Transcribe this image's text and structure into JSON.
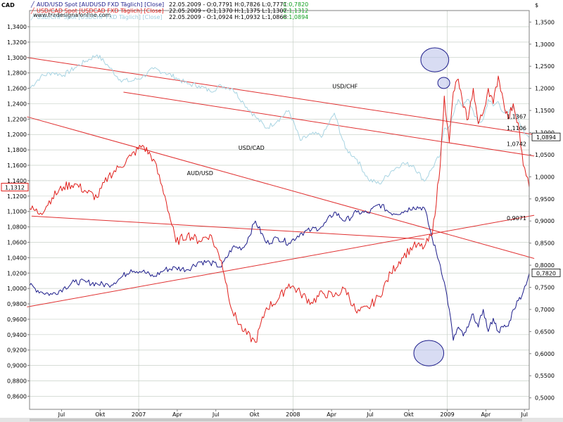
{
  "app": {
    "ticker": "CAD",
    "currency_symbol": "$",
    "watermark": "www.tradesignalonline.com"
  },
  "header": {
    "lines": [
      {
        "name": "AUD/USD Spot [AUDUSD FXD  Täglich] [Close]",
        "stats": "22.05.2009 - O:0,7791 H:0,7826 L:0,7771",
        "close": "C:0,7820",
        "color": "#1c1c8a"
      },
      {
        "name": "USD/CAD Spot [USDCAD FXD  Täglich] [Close]",
        "stats": "22.05.2009 - O:1,1370 H:1,1375 L:1,1307",
        "close": "C:1,1312",
        "color": "#e0201c"
      },
      {
        "name": "USD/CHF Spot [USDCHF FXD  Täglich] [Close]",
        "stats": "22.05.2009 - O:1,0924 H:1,0932 L:1,0868",
        "close": "C:1,0894",
        "color": "#9ecfe0"
      }
    ]
  },
  "colors": {
    "aud": "#1c1c8a",
    "cad": "#e0201c",
    "chf": "#a8d4e2",
    "trend": "#e03030",
    "grid": "#c8d0c8",
    "highlight_fill": "#b8c0ea",
    "highlight_stroke": "#1c1c8a",
    "close_positive": "#10a020"
  },
  "chart_data": {
    "type": "line",
    "x_tick_labels": [
      "Jul",
      "Okt",
      "2007",
      "Apr",
      "Jul",
      "Okt",
      "2008",
      "Apr",
      "Jul",
      "Okt",
      "2009",
      "Apr",
      "Jul"
    ],
    "left_axis": {
      "labels": [
        "1,3400",
        "1,3200",
        "1,3000",
        "1,2800",
        "1,2600",
        "1,2400",
        "1,2200",
        "1,2000",
        "1,1800",
        "1,1600",
        "1,1400",
        "1,1200",
        "1,1000",
        "1,0800",
        "1,0600",
        "1,0400",
        "1,0200",
        "1,0000",
        "0,9800",
        "0,9600",
        "0,9400",
        "0,9200",
        "0,9000",
        "0,8800",
        "0,8600"
      ],
      "values": [
        1.34,
        1.32,
        1.3,
        1.28,
        1.26,
        1.24,
        1.22,
        1.2,
        1.18,
        1.16,
        1.14,
        1.12,
        1.1,
        1.08,
        1.06,
        1.04,
        1.02,
        1.0,
        0.98,
        0.96,
        0.94,
        0.92,
        0.9,
        0.88,
        0.86
      ],
      "range": [
        0.843,
        1.361
      ],
      "current_value_label": "1,1312"
    },
    "right_axis": {
      "labels": [
        "1,3500",
        "1,3000",
        "1,2500",
        "1,2000",
        "1,1500",
        "1,1000",
        "1,0500",
        "1,0000",
        "0,9500",
        "0,9000",
        "0,8500",
        "0,8000",
        "0,7500",
        "0,7000",
        "0,6500",
        "0,6000",
        "0,5500",
        "0,5000"
      ],
      "values": [
        1.35,
        1.3,
        1.25,
        1.2,
        1.15,
        1.1,
        1.05,
        1.0,
        0.95,
        0.9,
        0.85,
        0.8,
        0.75,
        0.7,
        0.65,
        0.6,
        0.55,
        0.5
      ],
      "range": [
        0.474,
        1.376
      ],
      "current_labels": [
        {
          "text": "1,0894",
          "value": 1.0894,
          "color": "#000000",
          "boxed": true
        },
        {
          "text": "0,7820",
          "value": 0.782,
          "color": "#000000",
          "boxed": true
        }
      ]
    },
    "trendline_labels": [
      {
        "text": "1,1367",
        "value": 1.1367,
        "color": "#e0201c"
      },
      {
        "text": "1,1106",
        "value": 1.1106,
        "color": "#e0201c"
      },
      {
        "text": "0,9071",
        "value": 0.9071,
        "color": "#e0201c"
      },
      {
        "text": "1,0742",
        "value": 1.0742,
        "color": "#e0201c"
      }
    ],
    "series_labels": [
      {
        "text": "USD/CAD",
        "series": "USD/CAD",
        "x": 0.418,
        "value": 1.18
      },
      {
        "text": "USD/CHF",
        "series": "USD/CHF",
        "x": 0.606,
        "value": 1.2
      },
      {
        "text": "AUD/USD",
        "series": "AUD/USD",
        "x": 0.315,
        "value": 1.004
      }
    ],
    "series": [
      {
        "name": "USD/CAD",
        "axis": "left",
        "color": "#e0201c",
        "x": [
          0,
          0.022,
          0.045,
          0.068,
          0.09,
          0.113,
          0.135,
          0.158,
          0.181,
          0.203,
          0.226,
          0.248,
          0.271,
          0.293,
          0.316,
          0.339,
          0.361,
          0.384,
          0.406,
          0.429,
          0.452,
          0.474,
          0.497,
          0.519,
          0.542,
          0.564,
          0.587,
          0.61,
          0.632,
          0.655,
          0.678,
          0.7,
          0.723,
          0.745,
          0.768,
          0.79,
          0.806,
          0.822,
          0.83,
          0.84,
          0.848,
          0.858,
          0.868,
          0.878,
          0.888,
          0.898,
          0.908,
          0.918,
          0.928,
          0.938,
          0.948,
          0.958,
          0.968,
          0.978,
          0.988,
          1.0
        ],
        "values": [
          1.104,
          1.098,
          1.118,
          1.132,
          1.136,
          1.126,
          1.118,
          1.146,
          1.158,
          1.172,
          1.186,
          1.168,
          1.12,
          1.06,
          1.07,
          1.062,
          1.07,
          1.036,
          0.97,
          0.944,
          0.93,
          0.975,
          0.985,
          1.006,
          0.994,
          0.982,
          0.994,
          0.99,
          1.0,
          0.968,
          0.975,
          0.99,
          1.02,
          1.04,
          1.055,
          1.054,
          1.07,
          1.16,
          1.25,
          1.19,
          1.255,
          1.272,
          1.235,
          1.22,
          1.26,
          1.214,
          1.228,
          1.26,
          1.24,
          1.276,
          1.245,
          1.22,
          1.24,
          1.215,
          1.16,
          1.1312
        ]
      },
      {
        "name": "USD/CHF",
        "axis": "right",
        "color": "#a8d4e2",
        "x": [
          0,
          0.022,
          0.045,
          0.068,
          0.09,
          0.113,
          0.135,
          0.158,
          0.181,
          0.203,
          0.226,
          0.248,
          0.271,
          0.293,
          0.316,
          0.339,
          0.361,
          0.384,
          0.406,
          0.429,
          0.452,
          0.474,
          0.497,
          0.519,
          0.542,
          0.564,
          0.587,
          0.61,
          0.632,
          0.655,
          0.678,
          0.7,
          0.723,
          0.745,
          0.768,
          0.79,
          0.806,
          0.822,
          0.83,
          0.84,
          0.848,
          0.858,
          0.868,
          0.878,
          0.888,
          0.898,
          0.908,
          0.918,
          0.928,
          0.938,
          0.948,
          0.958,
          0.968,
          0.978,
          0.988,
          1.0
        ],
        "values": [
          1.2,
          1.226,
          1.236,
          1.23,
          1.246,
          1.262,
          1.276,
          1.25,
          1.22,
          1.216,
          1.226,
          1.244,
          1.236,
          1.224,
          1.21,
          1.206,
          1.194,
          1.206,
          1.2,
          1.166,
          1.136,
          1.11,
          1.128,
          1.15,
          1.082,
          1.096,
          1.094,
          1.144,
          1.064,
          1.04,
          0.994,
          0.984,
          1.012,
          1.03,
          1.026,
          0.99,
          1.02,
          1.05,
          1.11,
          1.114,
          1.14,
          1.175,
          1.16,
          1.175,
          1.148,
          1.12,
          1.13,
          1.175,
          1.16,
          1.17,
          1.146,
          1.144,
          1.158,
          1.13,
          1.107,
          1.0894
        ]
      },
      {
        "name": "AUD/USD",
        "axis": "right",
        "color": "#1c1c8a",
        "x": [
          0,
          0.022,
          0.045,
          0.068,
          0.09,
          0.113,
          0.135,
          0.158,
          0.181,
          0.203,
          0.226,
          0.248,
          0.271,
          0.293,
          0.316,
          0.339,
          0.361,
          0.384,
          0.406,
          0.429,
          0.452,
          0.474,
          0.497,
          0.519,
          0.542,
          0.564,
          0.587,
          0.61,
          0.632,
          0.655,
          0.678,
          0.7,
          0.723,
          0.745,
          0.768,
          0.79,
          0.806,
          0.822,
          0.83,
          0.84,
          0.848,
          0.858,
          0.868,
          0.878,
          0.888,
          0.898,
          0.908,
          0.918,
          0.928,
          0.938,
          0.948,
          0.958,
          0.968,
          0.978,
          0.988,
          1.0
        ],
        "values": [
          0.754,
          0.74,
          0.734,
          0.748,
          0.762,
          0.762,
          0.758,
          0.755,
          0.77,
          0.79,
          0.786,
          0.774,
          0.79,
          0.794,
          0.79,
          0.808,
          0.806,
          0.796,
          0.84,
          0.84,
          0.9,
          0.85,
          0.862,
          0.85,
          0.872,
          0.88,
          0.888,
          0.92,
          0.9,
          0.92,
          0.918,
          0.938,
          0.918,
          0.92,
          0.932,
          0.93,
          0.86,
          0.8,
          0.762,
          0.7,
          0.63,
          0.66,
          0.64,
          0.66,
          0.69,
          0.66,
          0.7,
          0.65,
          0.68,
          0.65,
          0.66,
          0.662,
          0.7,
          0.72,
          0.74,
          0.782
        ]
      }
    ],
    "trendlines": [
      {
        "axis": "left",
        "x1": -0.005,
        "y1": 1.3,
        "x2": 1.01,
        "y2": 1.2
      },
      {
        "axis": "left",
        "x1": 0.188,
        "y1": 1.255,
        "x2": 1.01,
        "y2": 1.172
      },
      {
        "axis": "left",
        "x1": -0.005,
        "y1": 1.223,
        "x2": 1.01,
        "y2": 1.039
      },
      {
        "axis": "left",
        "x1": 0.004,
        "y1": 1.094,
        "x2": 0.79,
        "y2": 1.064
      },
      {
        "axis": "left",
        "x1": -0.005,
        "y1": 0.976,
        "x2": 1.01,
        "y2": 1.095
      }
    ],
    "highlights": [
      {
        "axis": "left",
        "x": 0.811,
        "value": 1.297,
        "rx": 0.028,
        "ry": 0.015
      },
      {
        "axis": "left",
        "x": 0.829,
        "value": 1.267,
        "rx": 0.012,
        "ry": 0.007
      },
      {
        "axis": "left",
        "x": 0.799,
        "value": 0.916,
        "rx": 0.03,
        "ry": 0.016
      }
    ]
  }
}
